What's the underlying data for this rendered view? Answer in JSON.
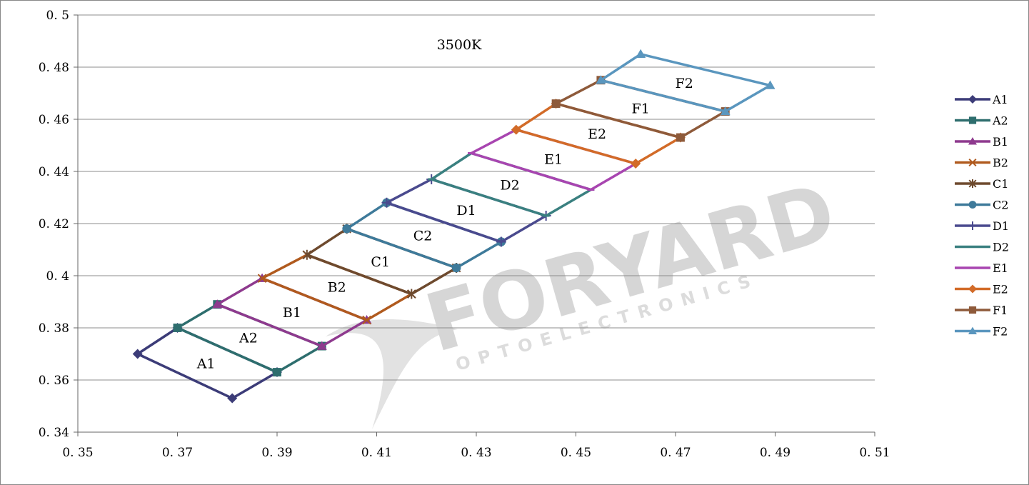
{
  "chart_data": {
    "type": "line",
    "title": "3500K",
    "xlabel": "",
    "ylabel": "",
    "xlim": [
      0.35,
      0.51
    ],
    "ylim": [
      0.34,
      0.5
    ],
    "xticks": [
      "0.35",
      "0.37",
      "0.39",
      "0.41",
      "0.43",
      "0.45",
      "0.47",
      "0.49",
      "0.51"
    ],
    "yticks": [
      "0.34",
      "0.36",
      "0.38",
      "0.4",
      "0.42",
      "0.44",
      "0.46",
      "0.48",
      "0.5"
    ],
    "grid": true,
    "legend_position": "right",
    "watermark": {
      "brand": "FORYARD",
      "sub": "OPTOELECTRONICS"
    },
    "series": [
      {
        "name": "A1",
        "color": "#3c3c78",
        "marker": "diamond",
        "points": [
          [
            0.362,
            0.37
          ],
          [
            0.37,
            0.38
          ],
          [
            0.39,
            0.363
          ],
          [
            0.381,
            0.353
          ],
          [
            0.362,
            0.37
          ]
        ]
      },
      {
        "name": "A2",
        "color": "#2e6e6e",
        "marker": "square",
        "points": [
          [
            0.37,
            0.38
          ],
          [
            0.378,
            0.389
          ],
          [
            0.399,
            0.373
          ],
          [
            0.39,
            0.363
          ],
          [
            0.37,
            0.38
          ]
        ]
      },
      {
        "name": "B1",
        "color": "#8e3a8e",
        "marker": "triangle",
        "points": [
          [
            0.378,
            0.389
          ],
          [
            0.387,
            0.399
          ],
          [
            0.408,
            0.383
          ],
          [
            0.399,
            0.373
          ],
          [
            0.378,
            0.389
          ]
        ]
      },
      {
        "name": "B2",
        "color": "#b05a1e",
        "marker": "x",
        "points": [
          [
            0.387,
            0.399
          ],
          [
            0.396,
            0.408
          ],
          [
            0.417,
            0.393
          ],
          [
            0.408,
            0.383
          ],
          [
            0.387,
            0.399
          ]
        ]
      },
      {
        "name": "C1",
        "color": "#6e4a2e",
        "marker": "star",
        "points": [
          [
            0.396,
            0.408
          ],
          [
            0.404,
            0.418
          ],
          [
            0.426,
            0.403
          ],
          [
            0.417,
            0.393
          ],
          [
            0.396,
            0.408
          ]
        ]
      },
      {
        "name": "C2",
        "color": "#3e7a9a",
        "marker": "circle",
        "points": [
          [
            0.404,
            0.418
          ],
          [
            0.412,
            0.428
          ],
          [
            0.435,
            0.413
          ],
          [
            0.426,
            0.403
          ],
          [
            0.404,
            0.418
          ]
        ]
      },
      {
        "name": "D1",
        "color": "#4a4a8e",
        "marker": "plus",
        "points": [
          [
            0.412,
            0.428
          ],
          [
            0.421,
            0.437
          ],
          [
            0.444,
            0.423
          ],
          [
            0.435,
            0.413
          ],
          [
            0.412,
            0.428
          ]
        ]
      },
      {
        "name": "D2",
        "color": "#3a8080",
        "marker": "dash",
        "points": [
          [
            0.421,
            0.437
          ],
          [
            0.429,
            0.447
          ],
          [
            0.453,
            0.433
          ],
          [
            0.444,
            0.423
          ],
          [
            0.421,
            0.437
          ]
        ]
      },
      {
        "name": "E1",
        "color": "#a845b0",
        "marker": "dash",
        "points": [
          [
            0.429,
            0.447
          ],
          [
            0.438,
            0.456
          ],
          [
            0.462,
            0.443
          ],
          [
            0.453,
            0.433
          ],
          [
            0.429,
            0.447
          ]
        ]
      },
      {
        "name": "E2",
        "color": "#d26b28",
        "marker": "diamond",
        "points": [
          [
            0.438,
            0.456
          ],
          [
            0.446,
            0.466
          ],
          [
            0.471,
            0.453
          ],
          [
            0.462,
            0.443
          ],
          [
            0.438,
            0.456
          ]
        ]
      },
      {
        "name": "F1",
        "color": "#8e5a3a",
        "marker": "square",
        "points": [
          [
            0.446,
            0.466
          ],
          [
            0.455,
            0.475
          ],
          [
            0.48,
            0.463
          ],
          [
            0.471,
            0.453
          ],
          [
            0.446,
            0.466
          ]
        ]
      },
      {
        "name": "F2",
        "color": "#5a96be",
        "marker": "triangle",
        "points": [
          [
            0.455,
            0.475
          ],
          [
            0.463,
            0.485
          ],
          [
            0.489,
            0.473
          ],
          [
            0.48,
            0.463
          ],
          [
            0.455,
            0.475
          ]
        ]
      }
    ]
  }
}
